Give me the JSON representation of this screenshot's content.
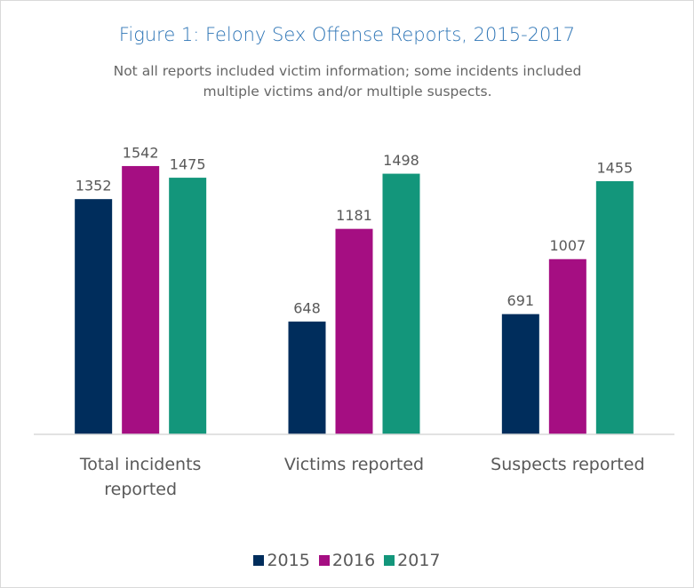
{
  "chart_data": {
    "type": "bar",
    "title": "Figure 1: Felony Sex Offense Reports, 2015-2017",
    "subtitle": "Not all reports included victim information; some incidents included multiple victims and/or multiple suspects.",
    "categories": [
      "Total incidents reported",
      "Victims reported",
      "Suspects reported"
    ],
    "series": [
      {
        "name": "2015",
        "color": "#002d5c",
        "values": [
          1352,
          648,
          691
        ]
      },
      {
        "name": "2016",
        "color": "#a50e82",
        "values": [
          1542,
          1181,
          1007
        ]
      },
      {
        "name": "2017",
        "color": "#13967b",
        "values": [
          1475,
          1498,
          1455
        ]
      }
    ],
    "ylim": [
      0,
      1700
    ]
  }
}
